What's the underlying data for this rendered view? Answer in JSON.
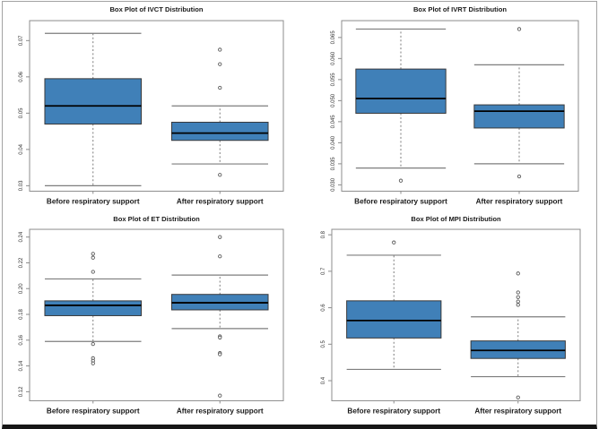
{
  "figure": {
    "background": "#ffffff",
    "frame_side_color": "#a3a3a3",
    "frame_bottom_color": "#161616",
    "box_fill": "#4080b8",
    "box_stroke": "#38393b",
    "median_color": "#000000",
    "whisker_color": "#7d7d7d",
    "axis_color": "#8c8c8c",
    "outlier_stroke": "#5a5a5a"
  },
  "chart_data": [
    {
      "type": "box",
      "title": "Box Plot of IVCT Distribution",
      "categories": [
        "Before respiratory support",
        "After respiratory support"
      ],
      "ylim": [
        0.0285,
        0.0755
      ],
      "yticks": [
        0.03,
        0.04,
        0.05,
        0.06,
        0.07
      ],
      "ytick_labels": [
        "0.03",
        "0.04",
        "0.05",
        "0.06",
        "0.07"
      ],
      "grid": false,
      "legend": "none",
      "series": [
        {
          "name": "Before respiratory support",
          "whisker_low": 0.03,
          "q1": 0.047,
          "median": 0.052,
          "q3": 0.0595,
          "whisker_high": 0.072,
          "outliers": []
        },
        {
          "name": "After respiratory support",
          "whisker_low": 0.036,
          "q1": 0.0425,
          "median": 0.0445,
          "q3": 0.0475,
          "whisker_high": 0.052,
          "outliers": [
            0.0675,
            0.0635,
            0.057,
            0.033
          ]
        }
      ]
    },
    {
      "type": "box",
      "title": "Box Plot of IVRT Distribution",
      "categories": [
        "Before respiratory support",
        "After respiratory support"
      ],
      "ylim": [
        0.0285,
        0.069
      ],
      "yticks": [
        0.03,
        0.035,
        0.04,
        0.045,
        0.05,
        0.055,
        0.06,
        0.065
      ],
      "ytick_labels": [
        "0.030",
        "0.035",
        "0.040",
        "0.045",
        "0.050",
        "0.055",
        "0.060",
        "0.065"
      ],
      "grid": false,
      "legend": "none",
      "series": [
        {
          "name": "Before respiratory support",
          "whisker_low": 0.034,
          "q1": 0.047,
          "median": 0.0505,
          "q3": 0.0575,
          "whisker_high": 0.067,
          "outliers": [
            0.031
          ]
        },
        {
          "name": "After respiratory support",
          "whisker_low": 0.035,
          "q1": 0.0435,
          "median": 0.0475,
          "q3": 0.049,
          "whisker_high": 0.0585,
          "outliers": [
            0.067,
            0.032
          ]
        }
      ]
    },
    {
      "type": "box",
      "title": "Box Plot of ET Distribution",
      "categories": [
        "Before respiratory support",
        "After respiratory support"
      ],
      "ylim": [
        0.113,
        0.246
      ],
      "yticks": [
        0.12,
        0.14,
        0.16,
        0.18,
        0.2,
        0.22,
        0.24
      ],
      "ytick_labels": [
        "0.12",
        "0.14",
        "0.16",
        "0.18",
        "0.20",
        "0.22",
        "0.24"
      ],
      "grid": false,
      "legend": "none",
      "series": [
        {
          "name": "Before respiratory support",
          "whisker_low": 0.159,
          "q1": 0.179,
          "median": 0.187,
          "q3": 0.1905,
          "whisker_high": 0.2075,
          "outliers": [
            0.227,
            0.224,
            0.213,
            0.157,
            0.146,
            0.144,
            0.142
          ]
        },
        {
          "name": "After respiratory support",
          "whisker_low": 0.169,
          "q1": 0.1835,
          "median": 0.189,
          "q3": 0.1955,
          "whisker_high": 0.2105,
          "outliers": [
            0.24,
            0.225,
            0.163,
            0.162,
            0.15,
            0.149,
            0.117
          ]
        }
      ]
    },
    {
      "type": "box",
      "title": "Box Plot of MPI Distribution",
      "categories": [
        "Before respiratory support",
        "After respiratory support"
      ],
      "ylim": [
        0.345,
        0.815
      ],
      "yticks": [
        0.4,
        0.5,
        0.6,
        0.7,
        0.8
      ],
      "ytick_labels": [
        "0.4",
        "0.5",
        "0.6",
        "0.7",
        "0.8"
      ],
      "grid": false,
      "legend": "none",
      "series": [
        {
          "name": "Before respiratory support",
          "whisker_low": 0.431,
          "q1": 0.517,
          "median": 0.565,
          "q3": 0.619,
          "whisker_high": 0.744,
          "outliers": [
            0.779
          ]
        },
        {
          "name": "After respiratory support",
          "whisker_low": 0.411,
          "q1": 0.461,
          "median": 0.483,
          "q3": 0.509,
          "whisker_high": 0.575,
          "outliers": [
            0.694,
            0.642,
            0.629,
            0.617,
            0.608,
            0.354
          ]
        }
      ]
    }
  ]
}
